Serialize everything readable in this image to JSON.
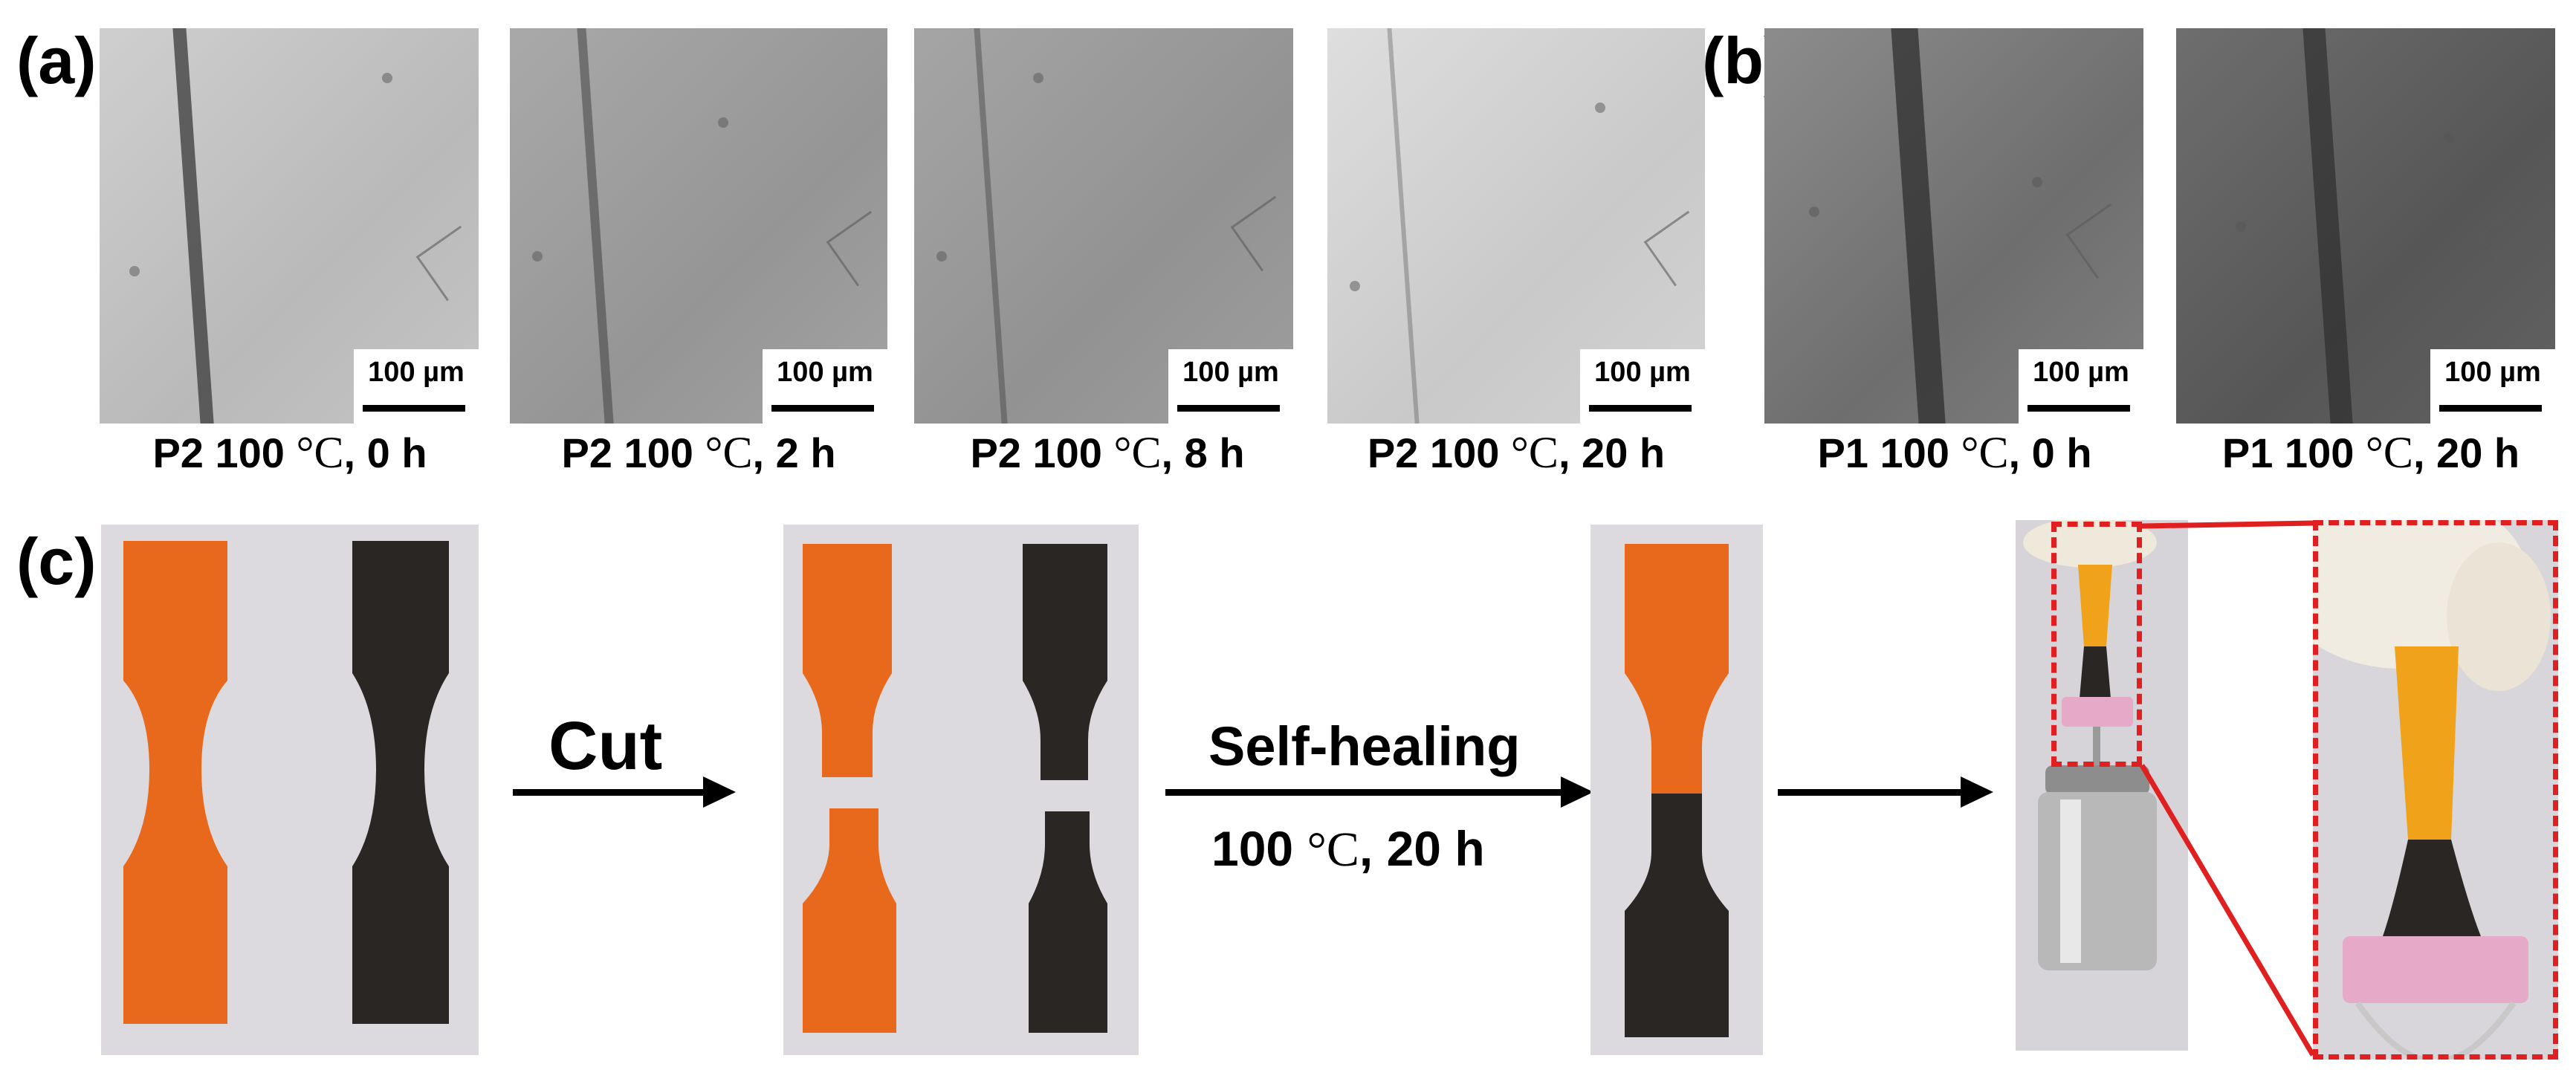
{
  "panel_labels": {
    "a": "(a)",
    "b": "(b)",
    "c": "(c)"
  },
  "scale_bar_label": "100 µm",
  "micrographs": [
    {
      "caption_pre": "P2 100 ",
      "caption_unit": "°C",
      "caption_post": ", 0 h"
    },
    {
      "caption_pre": "P2 100 ",
      "caption_unit": "°C",
      "caption_post": ", 2 h"
    },
    {
      "caption_pre": "P2 100 ",
      "caption_unit": "°C",
      "caption_post": ", 8 h"
    },
    {
      "caption_pre": "P2 100 ",
      "caption_unit": "°C",
      "caption_post": ", 20 h"
    },
    {
      "caption_pre": "P1 100 ",
      "caption_unit": "°C",
      "caption_post": ", 0 h"
    },
    {
      "caption_pre": "P1 100 ",
      "caption_unit": "°C",
      "caption_post": ", 20 h"
    }
  ],
  "process": {
    "cut_label": "Cut",
    "heal_label": "Self-healing",
    "heal_condition_pre": "100 ",
    "heal_condition_unit": "°C",
    "heal_condition_post": ", 20 h"
  },
  "colors": {
    "orange_sample": "#e8681c",
    "black_sample": "#2a2624",
    "highlight_box": "#e02020",
    "photo_background": "#dcdadf"
  }
}
